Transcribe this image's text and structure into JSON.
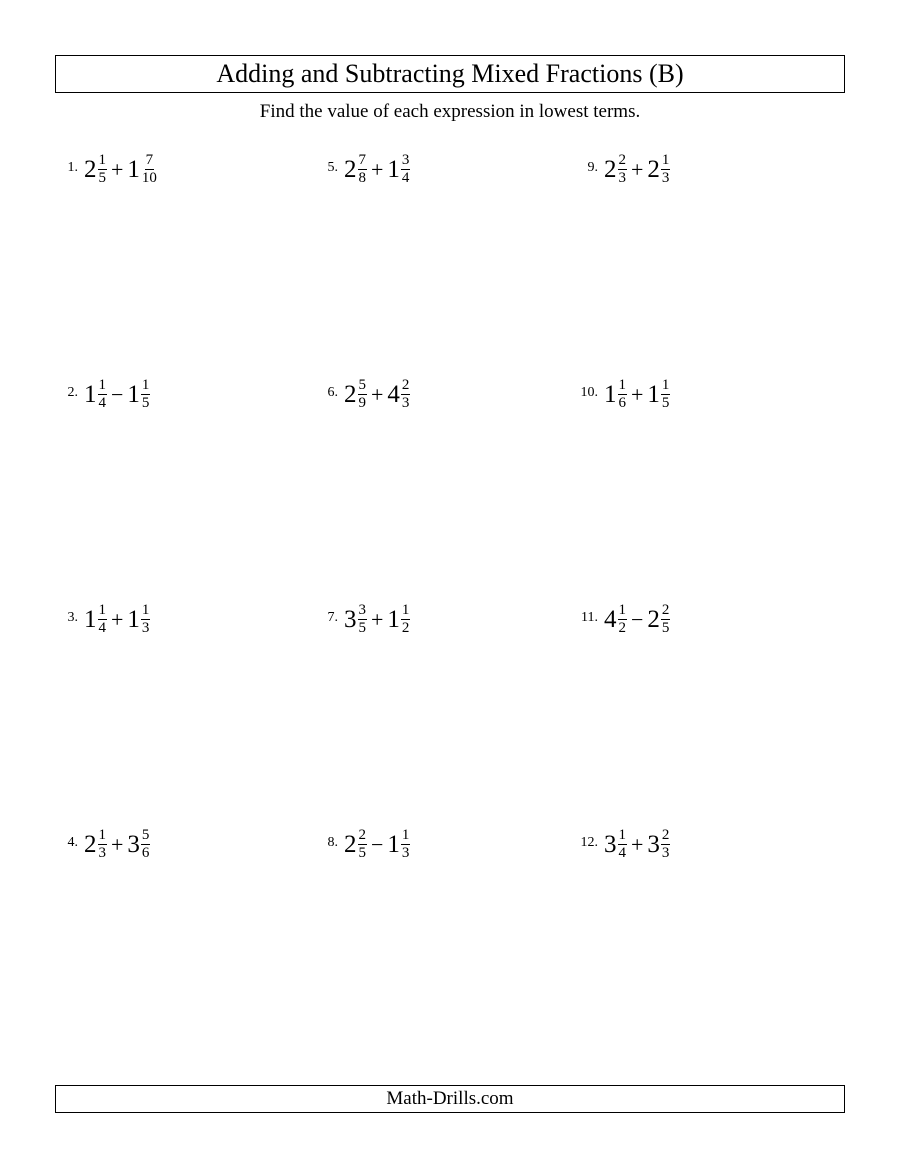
{
  "title": "Adding and Subtracting Mixed Fractions (B)",
  "subtitle": "Find the value of each expression in lowest terms.",
  "footer": "Math-Drills.com",
  "problems": [
    {
      "n": "1.",
      "a": {
        "w": "2",
        "num": "1",
        "den": "5"
      },
      "op": "+",
      "b": {
        "w": "1",
        "num": "7",
        "den": "10"
      }
    },
    {
      "n": "2.",
      "a": {
        "w": "1",
        "num": "1",
        "den": "4"
      },
      "op": "−",
      "b": {
        "w": "1",
        "num": "1",
        "den": "5"
      }
    },
    {
      "n": "3.",
      "a": {
        "w": "1",
        "num": "1",
        "den": "4"
      },
      "op": "+",
      "b": {
        "w": "1",
        "num": "1",
        "den": "3"
      }
    },
    {
      "n": "4.",
      "a": {
        "w": "2",
        "num": "1",
        "den": "3"
      },
      "op": "+",
      "b": {
        "w": "3",
        "num": "5",
        "den": "6"
      }
    },
    {
      "n": "5.",
      "a": {
        "w": "2",
        "num": "7",
        "den": "8"
      },
      "op": "+",
      "b": {
        "w": "1",
        "num": "3",
        "den": "4"
      }
    },
    {
      "n": "6.",
      "a": {
        "w": "2",
        "num": "5",
        "den": "9"
      },
      "op": "+",
      "b": {
        "w": "4",
        "num": "2",
        "den": "3"
      }
    },
    {
      "n": "7.",
      "a": {
        "w": "3",
        "num": "3",
        "den": "5"
      },
      "op": "+",
      "b": {
        "w": "1",
        "num": "1",
        "den": "2"
      }
    },
    {
      "n": "8.",
      "a": {
        "w": "2",
        "num": "2",
        "den": "5"
      },
      "op": "−",
      "b": {
        "w": "1",
        "num": "1",
        "den": "3"
      }
    },
    {
      "n": "9.",
      "a": {
        "w": "2",
        "num": "2",
        "den": "3"
      },
      "op": "+",
      "b": {
        "w": "2",
        "num": "1",
        "den": "3"
      }
    },
    {
      "n": "10.",
      "a": {
        "w": "1",
        "num": "1",
        "den": "6"
      },
      "op": "+",
      "b": {
        "w": "1",
        "num": "1",
        "den": "5"
      }
    },
    {
      "n": "11.",
      "a": {
        "w": "4",
        "num": "1",
        "den": "2"
      },
      "op": "−",
      "b": {
        "w": "2",
        "num": "2",
        "den": "5"
      }
    },
    {
      "n": "12.",
      "a": {
        "w": "3",
        "num": "1",
        "den": "4"
      },
      "op": "+",
      "b": {
        "w": "3",
        "num": "2",
        "den": "3"
      }
    }
  ],
  "layout": {
    "columns": 3,
    "rows": 4,
    "order": "column-major"
  },
  "styling": {
    "background_color": "#ffffff",
    "text_color": "#000000",
    "border_color": "#000000",
    "font_family": "Times New Roman",
    "title_fontsize": 26,
    "subtitle_fontsize": 19,
    "problem_number_fontsize": 14,
    "whole_number_fontsize": 25,
    "fraction_fontsize": 15,
    "operator_fontsize": 22,
    "footer_fontsize": 19
  }
}
